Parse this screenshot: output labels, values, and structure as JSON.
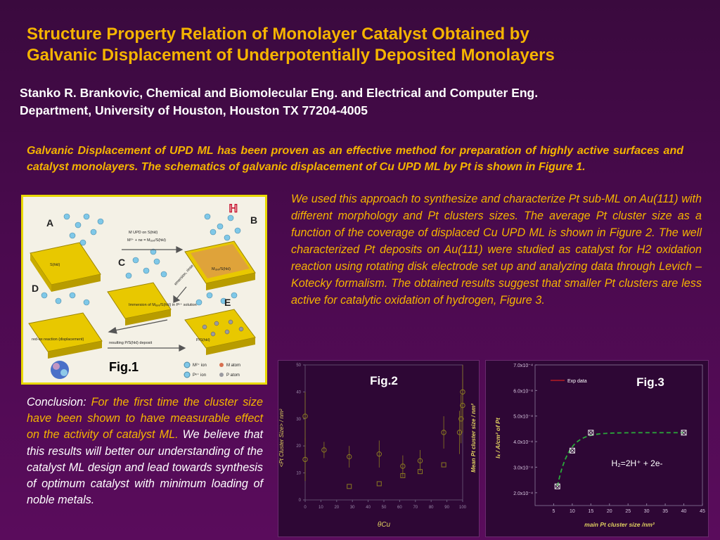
{
  "title": {
    "line1": "Structure Property Relation of Monolayer Catalyst Obtained by",
    "line2": "Galvanic Displacement of Underpotentially Deposited Monolayers"
  },
  "authors": {
    "line1": "Stanko R. Brankovic, Chemical and Biomolecular Eng. and Electrical and Computer Eng.",
    "line2": "Department, University of Houston, Houston TX 77204-4005"
  },
  "intro": "Galvanic Displacement of UPD ML has been proven as an effective method for preparation of highly active surfaces and catalyst monolayers. The schematics of galvanic displacement of Cu UPD ML by Pt is shown in Figure 1.",
  "body": "We used this approach to synthesize and characterize Pt sub-ML on Au(111) with different morphology and Pt clusters sizes. The average Pt cluster size as a function of the coverage of displaced Cu UPD ML is shown in Figure 2. The well characterized Pt deposits on Au(111) were studied as catalyst for H2 oxidation reaction using rotating disk electrode set up and analyzing data through Levich –Kotecky formalism. The obtained results suggest that smaller Pt clusters are less active for catalytic oxidation of hydrogen, Figure 3.",
  "conclusion": {
    "lead": "Conclusion: ",
    "highlight": "For the first time the cluster size have been shown to have measurable effect on the activity of catalyst ML.",
    "rest": " We believe that this results will better our understanding of the catalyst ML design and lead towards synthesis of optimum catalyst with minimum loading of noble metals."
  },
  "fig1": {
    "caption": "Fig.1",
    "labels": {
      "A": "A",
      "B": "B",
      "C": "C",
      "D": "D",
      "E": "E",
      "shkl": "S(hkl)",
      "mupd": "M UPD on S(hkl)",
      "eq": "M²⁺ + ne = Mᵤₚₑ/S(hkl)",
      "mupd_s": "Mᵤₚₑ/S(hkl)",
      "emersion": "emersion, rinse",
      "immersion": "Immersion of Mᵤₚₑ/S(hkl) in Pⁿ⁺ solution",
      "redox": "red-ox reaction (displacement)",
      "result": "resulting P/S(hkl) deposit",
      "ps": "P/S(hkl)",
      "legend_m_ion": "M²⁺ ion",
      "legend_p_ion": "Pⁿ⁺ ion",
      "legend_m_atom": "M atom",
      "legend_p_atom": "P atom"
    },
    "colors": {
      "gold": "#e8c800",
      "ion": "#7fc8e8",
      "border": "#e8d800"
    }
  },
  "chart_data": [
    {
      "type": "scatter",
      "title": "Fig.2",
      "xlabel": "θCu",
      "ylabel": "<Pt Cluster Size> / nm²",
      "ylabel2": "Mean Pt cluster size / nm²",
      "xlim": [
        0,
        100
      ],
      "ylim": [
        0,
        50
      ],
      "xticks": [
        "0",
        "10",
        "20",
        "30",
        "40",
        "50",
        "60",
        "70",
        "80",
        "90",
        "100"
      ],
      "yticks": [
        "0",
        "10",
        "20",
        "30",
        "40",
        "50"
      ],
      "series": [
        {
          "marker": "circle",
          "points": [
            [
              0,
              31,
              9
            ],
            [
              0,
              15,
              8
            ],
            [
              12,
              18.5,
              3
            ],
            [
              28,
              16,
              4
            ],
            [
              47,
              17,
              5
            ],
            [
              62,
              12.5,
              4
            ],
            [
              73,
              14.5,
              4
            ],
            [
              88,
              25,
              6
            ],
            [
              98,
              25,
              8
            ],
            [
              99,
              30,
              9
            ],
            [
              100,
              35,
              10
            ],
            [
              100,
              40,
              10
            ]
          ]
        },
        {
          "marker": "square",
          "points": [
            [
              28,
              5,
              0
            ],
            [
              47,
              6,
              0
            ],
            [
              62,
              9,
              0
            ],
            [
              73,
              10.5,
              0
            ],
            [
              88,
              13,
              0
            ]
          ]
        }
      ],
      "color": "#8a7a20"
    },
    {
      "type": "line",
      "title": "Fig.3",
      "xlabel": "main Pt cluster size /nm²",
      "ylabel": "Iₖ / A/cm² of Pt",
      "xlim": [
        0,
        45
      ],
      "ylim": [
        0.00015,
        0.0007
      ],
      "xticks": [
        "5",
        "10",
        "15",
        "20",
        "25",
        "30",
        "35",
        "40",
        "45"
      ],
      "yticks": [
        "2.0x10⁻⁴",
        "3.0x10⁻⁴",
        "4.0x10⁻⁴",
        "5.0x10⁻⁴",
        "6.0x10⁻⁴",
        "7.0x10⁻⁴"
      ],
      "series": [
        {
          "name": "Exp data",
          "x": [
            6,
            10,
            15,
            40
          ],
          "y": [
            0.000225,
            0.000365,
            0.000435,
            0.000435
          ]
        }
      ],
      "annotation": "H₂=2H⁺ + 2e-",
      "legend": "top-left",
      "colors": {
        "marker": "#e8e8e8",
        "fit": "#2aaa3a",
        "legend_line": "#d02020"
      }
    }
  ]
}
